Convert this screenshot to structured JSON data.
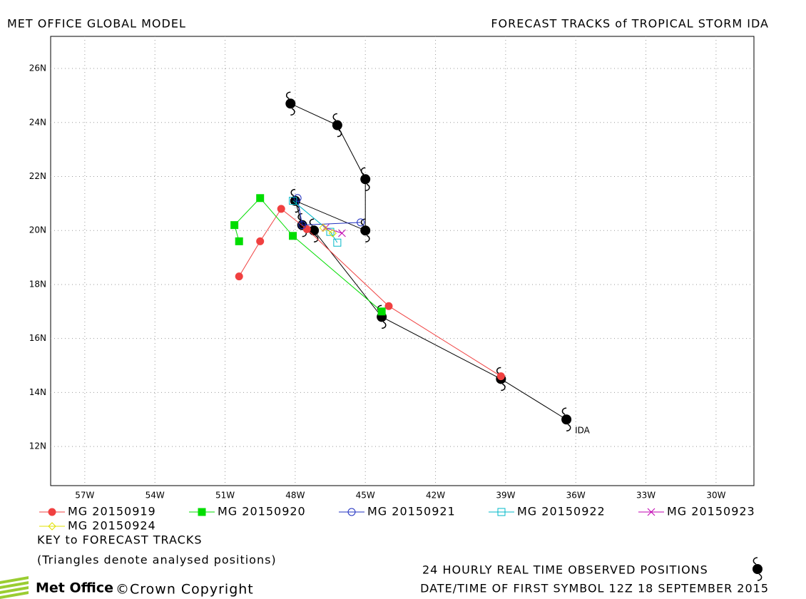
{
  "chart_data": {
    "type": "line",
    "title": "MET OFFICE GLOBAL MODEL",
    "subtitle": "FORECAST TRACKS of TROPICAL STORM IDA",
    "xlim": [
      -58.46,
      -28.38
    ],
    "ylim": [
      10.55,
      27.19
    ],
    "xticks": [
      {
        "value": -57,
        "label": "57W"
      },
      {
        "value": -54,
        "label": "54W"
      },
      {
        "value": -51,
        "label": "51W"
      },
      {
        "value": -48,
        "label": "48W"
      },
      {
        "value": -45,
        "label": "45W"
      },
      {
        "value": -42,
        "label": "42W"
      },
      {
        "value": -39,
        "label": "39W"
      },
      {
        "value": -36,
        "label": "36W"
      },
      {
        "value": -33,
        "label": "33W"
      },
      {
        "value": -30,
        "label": "30W"
      }
    ],
    "yticks": [
      {
        "value": 12,
        "label": "12N"
      },
      {
        "value": 14,
        "label": "14N"
      },
      {
        "value": 16,
        "label": "16N"
      },
      {
        "value": 18,
        "label": "18N"
      },
      {
        "value": 20,
        "label": "20N"
      },
      {
        "value": 22,
        "label": "22N"
      },
      {
        "value": 24,
        "label": "24N"
      },
      {
        "value": 26,
        "label": "26N"
      }
    ],
    "grid": true,
    "series": [
      {
        "name": "24 HOURLY REAL TIME OBSERVED POSITIONS",
        "color": "#000000",
        "marker": "storm",
        "x": [
          -36.4,
          -39.2,
          -44.3,
          -47.2,
          -47.7,
          -48.0,
          -45.0,
          -45.0,
          -46.2,
          -48.2
        ],
        "values": [
          13.0,
          14.5,
          16.8,
          20.0,
          20.2,
          21.1,
          20.0,
          21.9,
          23.9,
          24.7
        ]
      },
      {
        "name": "MG 20150919",
        "color": "#f04040",
        "marker": "circle",
        "x": [
          -39.2,
          -44.0,
          -47.5,
          -48.6,
          -49.5,
          -50.4
        ],
        "values": [
          14.6,
          17.2,
          20.05,
          20.8,
          19.6,
          18.3
        ]
      },
      {
        "name": "MG 20150920",
        "color": "#00dd00",
        "marker": "square",
        "x": [
          -44.3,
          -48.1,
          -49.5,
          -50.6,
          -50.4
        ],
        "values": [
          17.0,
          19.8,
          21.2,
          20.2,
          19.6
        ]
      },
      {
        "name": "MG 20150921",
        "color": "#2030c0",
        "marker": "open-circle",
        "x": [
          -47.9,
          -47.7,
          -45.2
        ],
        "values": [
          21.2,
          20.2,
          20.3
        ]
      },
      {
        "name": "MG 20150922",
        "color": "#00b8c8",
        "marker": "open-square",
        "x": [
          -48.1,
          -46.5,
          -46.2
        ],
        "values": [
          21.1,
          19.95,
          19.55
        ]
      },
      {
        "name": "MG 20150923",
        "color": "#c000b0",
        "marker": "cross",
        "x": [
          -46.7,
          -46.0
        ],
        "values": [
          20.1,
          19.9
        ]
      },
      {
        "name": "MG 20150924",
        "color": "#e0e000",
        "marker": "diamond",
        "x": [
          -46.8,
          -46.4
        ],
        "values": [
          20.1,
          19.9
        ]
      }
    ],
    "annotations": [
      {
        "text": "IDA",
        "x": -36.4,
        "y": 13.0
      }
    ],
    "key_title": "KEY to FORECAST TRACKS",
    "key_note": "(Triangles denote analysed positions)",
    "first_symbol": "DATE/TIME OF FIRST SYMBOL 12Z 18 SEPTEMBER 2015",
    "brand": "Met Office",
    "copyright": "©Crown Copyright"
  }
}
